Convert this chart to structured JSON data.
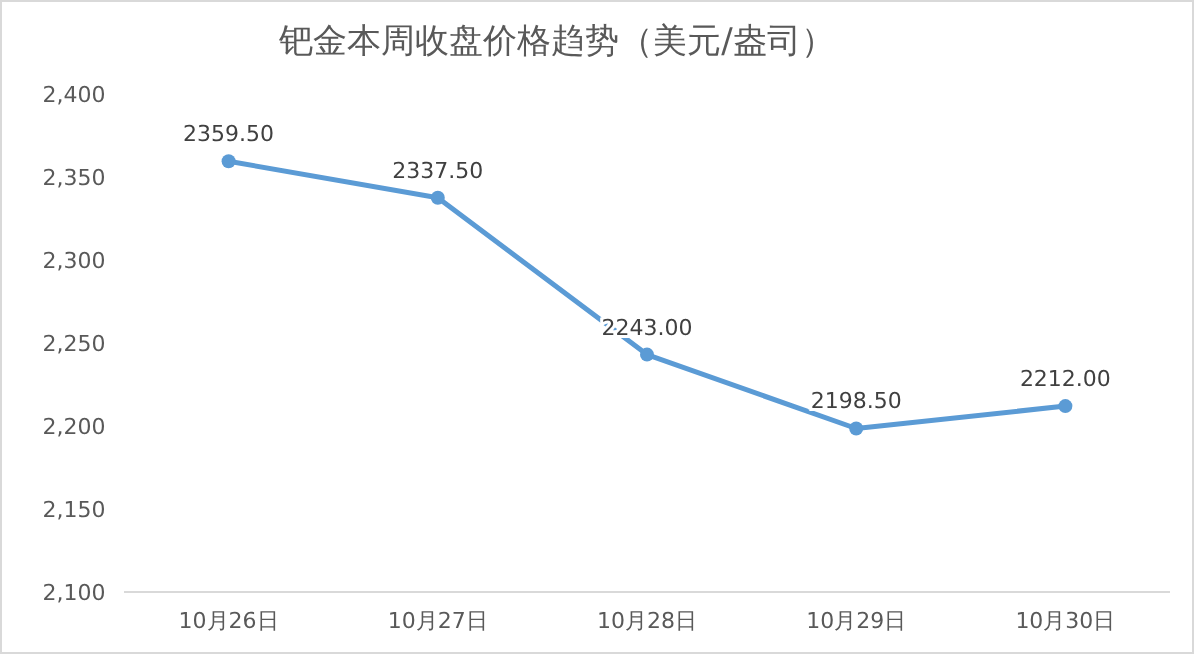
{
  "chart_data": {
    "type": "line",
    "title": "钯金本周收盘价格趋势（美元/盎司）",
    "categories": [
      "10月26日",
      "10月27日",
      "10月28日",
      "10月29日",
      "10月30日"
    ],
    "series": [
      {
        "color": "#5b9bd5",
        "values": [
          2359.5,
          2337.5,
          2243.0,
          2198.5,
          2212.0
        ],
        "value_labels": [
          "2359.50",
          "2337.50",
          "2243.00",
          "2198.50",
          "2212.00"
        ]
      }
    ],
    "ylim": [
      2100,
      2400
    ],
    "yticks": [
      {
        "value": 2100,
        "label": "2,100"
      },
      {
        "value": 2150,
        "label": "2,150"
      },
      {
        "value": 2200,
        "label": "2,200"
      },
      {
        "value": 2250,
        "label": "2,250"
      },
      {
        "value": 2300,
        "label": "2,300"
      },
      {
        "value": 2350,
        "label": "2,350"
      },
      {
        "value": 2400,
        "label": "2,400"
      }
    ],
    "marker": "circle"
  }
}
